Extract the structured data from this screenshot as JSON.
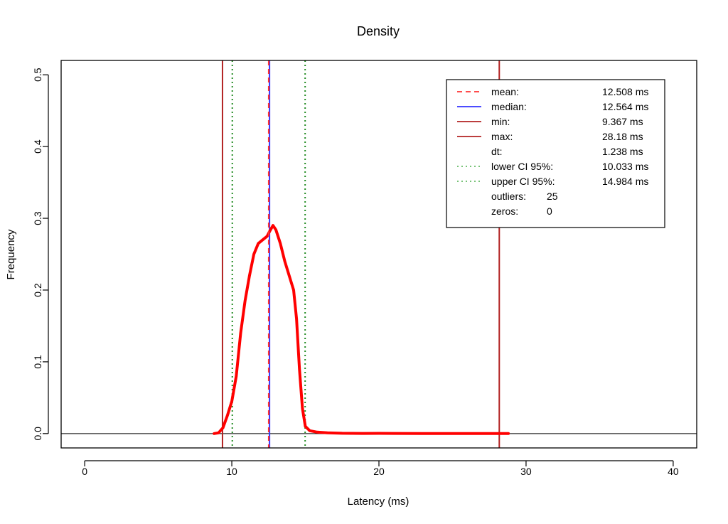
{
  "chart_data": {
    "type": "line",
    "title": "Density",
    "xlabel": "Latency (ms)",
    "ylabel": "Frequency",
    "xlim": [
      -1.6,
      41.6
    ],
    "ylim": [
      -0.02,
      0.52
    ],
    "x_ticks": [
      "0",
      "10",
      "20",
      "30",
      "40"
    ],
    "x_tick_values": [
      0,
      10,
      20,
      30,
      40
    ],
    "y_ticks": [
      "0.0",
      "0.1",
      "0.2",
      "0.3",
      "0.4",
      "0.5"
    ],
    "y_tick_values": [
      0,
      0.1,
      0.2,
      0.3,
      0.4,
      0.5
    ],
    "grid": false,
    "legend_position": "top-right",
    "series": [
      {
        "color": "#ff0000",
        "x": [
          8.8,
          9.1,
          9.4,
          9.7,
          10.0,
          10.3,
          10.6,
          10.9,
          11.2,
          11.5,
          11.8,
          12.1,
          12.4,
          12.6,
          12.8,
          13.0,
          13.3,
          13.6,
          13.9,
          14.2,
          14.4,
          14.6,
          14.8,
          15.0,
          15.3,
          15.8,
          16.5,
          17.5,
          19.0,
          20.0,
          21.0,
          23.0,
          25.0,
          27.0,
          28.0,
          28.8
        ],
        "y": [
          0.0,
          0.001,
          0.008,
          0.025,
          0.045,
          0.08,
          0.14,
          0.185,
          0.22,
          0.25,
          0.265,
          0.27,
          0.275,
          0.283,
          0.29,
          0.284,
          0.265,
          0.24,
          0.22,
          0.2,
          0.16,
          0.09,
          0.035,
          0.01,
          0.004,
          0.002,
          0.001,
          0.0004,
          0.0002,
          0.0003,
          0.0002,
          0.0001,
          0.0001,
          0.0001,
          0.0001,
          0.0
        ]
      }
    ],
    "reference_lines": [
      {
        "x": 12.508,
        "color": "#ff3333",
        "style": "dashed"
      },
      {
        "x": 12.564,
        "color": "#3333ff",
        "style": "solid"
      },
      {
        "x": 9.367,
        "color": "#b22222",
        "style": "solid"
      },
      {
        "x": 28.18,
        "color": "#b22222",
        "style": "solid"
      },
      {
        "x": 10.033,
        "color": "#228b22",
        "style": "dotted"
      },
      {
        "x": 14.984,
        "color": "#228b22",
        "style": "dotted"
      }
    ],
    "legend": [
      {
        "label": "mean:",
        "value": "12.508 ms",
        "color": "#ff3333",
        "style": "dashed"
      },
      {
        "label": "median:",
        "value": "12.564 ms",
        "color": "#3333ff",
        "style": "solid"
      },
      {
        "label": "min:",
        "value": "9.367 ms",
        "color": "#b22222",
        "style": "solid"
      },
      {
        "label": "max:",
        "value": "28.18 ms",
        "color": "#b22222",
        "style": "solid"
      },
      {
        "label": "dt:",
        "value": "1.238 ms",
        "color": "",
        "style": "none"
      },
      {
        "label": "lower CI 95%:",
        "value": "10.033 ms",
        "color": "#66bb66",
        "style": "dotted"
      },
      {
        "label": "upper CI 95%:",
        "value": "14.984 ms",
        "color": "#66bb66",
        "style": "dotted"
      },
      {
        "label": "outliers:",
        "value": "25",
        "color": "",
        "style": "none"
      },
      {
        "label": "zeros:",
        "value": "0",
        "color": "",
        "style": "none"
      }
    ]
  }
}
